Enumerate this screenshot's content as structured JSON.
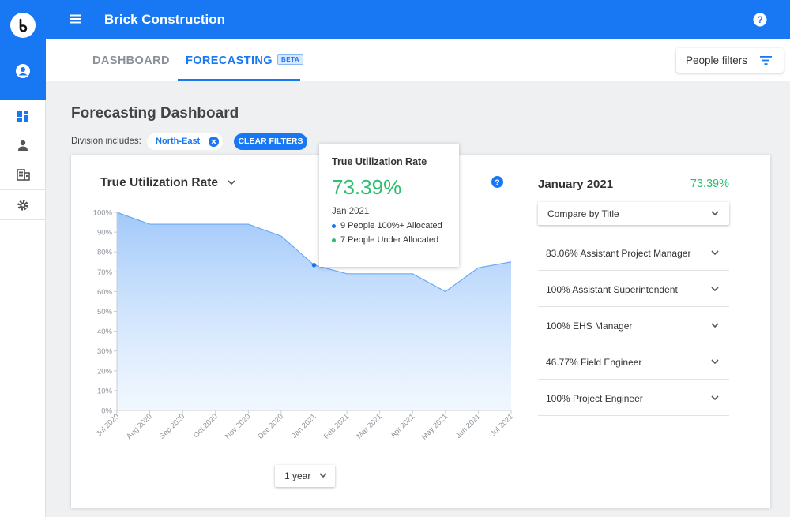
{
  "app": {
    "title": "Brick Construction",
    "logo_letter": "b"
  },
  "tabs": {
    "dashboard": "DASHBOARD",
    "forecasting": "FORECASTING",
    "beta": "BETA"
  },
  "people_filters_label": "People filters",
  "page_title": "Forecasting Dashboard",
  "filters": {
    "division_label": "Division includes:",
    "division_value": "North-East",
    "clear_label": "CLEAR FILTERS"
  },
  "chart_selector": "True Utilization Rate",
  "tooltip": {
    "title": "True Utilization Rate",
    "value": "73.39%",
    "date": "Jan 2021",
    "line1": "9 People 100%+ Allocated",
    "line2": "7 People Under Allocated",
    "line1_color": "#1877f2",
    "line2_color": "#2bbf6f"
  },
  "range_label": "1 year",
  "right_panel": {
    "month": "January 2021",
    "value": "73.39%",
    "compare_label": "Compare by Title",
    "titles": [
      "83.06% Assistant Project Manager",
      "100% Assistant Superintendent",
      "100% EHS Manager",
      "46.77% Field Engineer",
      "100% Project Engineer"
    ]
  },
  "colors": {
    "brand": "#1877f2",
    "positive": "#2bbf6f",
    "area_fill": "#a9cdfb"
  },
  "chart_data": {
    "type": "area",
    "title": "True Utilization Rate",
    "x": [
      "Jul 2020",
      "Aug 2020",
      "Sep 2020",
      "Oct 2020",
      "Nov 2020",
      "Dec 2020",
      "Jan 2021",
      "Feb 2021",
      "Mar 2021",
      "Apr 2021",
      "May 2021",
      "Jun 2021",
      "Jul 2021"
    ],
    "y": [
      100,
      94,
      94,
      94,
      94,
      88,
      73.39,
      69,
      69,
      69,
      60,
      72,
      75
    ],
    "y_ticks": [
      "0%",
      "10%",
      "20%",
      "30%",
      "40%",
      "50%",
      "60%",
      "70%",
      "80%",
      "90%",
      "100%"
    ],
    "ylim": [
      0,
      100
    ],
    "highlight_x": "Jan 2021",
    "grid": false
  }
}
